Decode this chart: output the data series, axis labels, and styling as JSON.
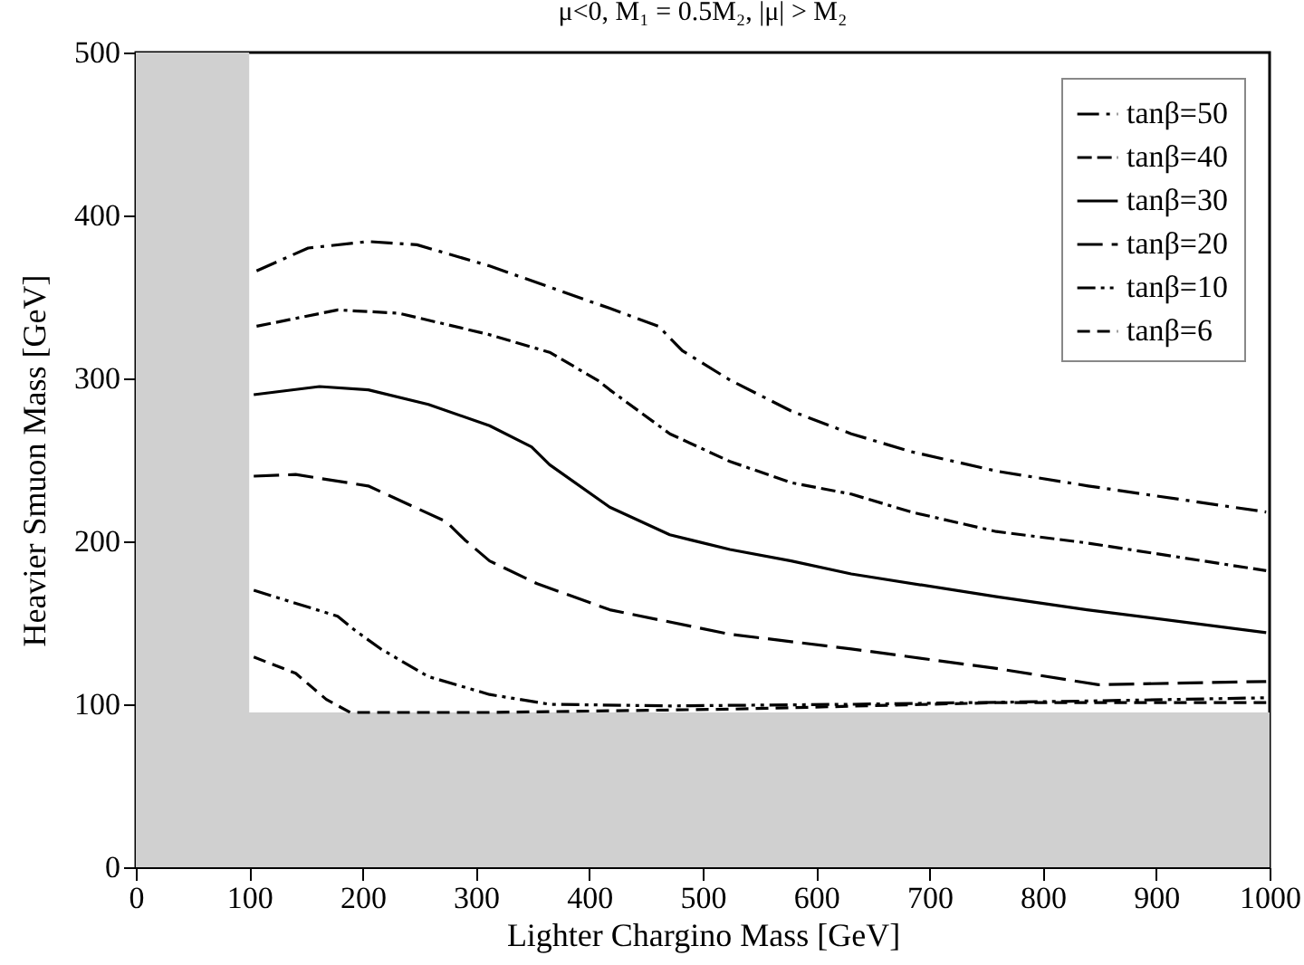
{
  "chart_data": {
    "type": "line",
    "title": "μ<0,   M₁ = 0.5M₂,  |μ| > M₂",
    "xlabel": "Lighter Chargino Mass  [GeV]",
    "ylabel": "Heavier Smuon Mass  [GeV]",
    "xlim": [
      0,
      1000
    ],
    "ylim": [
      0,
      500
    ],
    "xticks": [
      0,
      100,
      200,
      300,
      400,
      500,
      600,
      700,
      800,
      900,
      1000
    ],
    "yticks": [
      0,
      100,
      200,
      300,
      400,
      500
    ],
    "legend": "top right",
    "grid": false,
    "bands": [
      {
        "axis": "x",
        "from": 0,
        "to": 100,
        "color": "#d0d0d0"
      },
      {
        "axis": "y",
        "from": 0,
        "to": 95,
        "color": "#d0d0d0"
      }
    ],
    "series": [
      {
        "name": "tanβ=50",
        "color": "#000000",
        "line_style": "dashdot",
        "x": [
          106.5,
          152,
          205,
          248,
          312,
          365,
          418,
          461,
          482,
          524,
          578,
          631,
          684,
          760,
          840,
          997
        ],
        "values": [
          366,
          380,
          384,
          382,
          369,
          356,
          343,
          332,
          317,
          299,
          280,
          266,
          255,
          243,
          234,
          218
        ]
      },
      {
        "name": "tanβ=40",
        "color": "#000000",
        "line_style": "dashdashdot",
        "x": [
          106.5,
          178,
          232,
          311,
          365,
          407,
          418,
          471,
          524,
          578,
          631,
          684,
          759,
          839,
          997
        ],
        "values": [
          332,
          342,
          340,
          327,
          316,
          299,
          293,
          266,
          249,
          236,
          229,
          218,
          206,
          199,
          182
        ]
      },
      {
        "name": "tanβ=30",
        "color": "#000000",
        "line_style": "solid",
        "x": [
          104,
          162,
          205,
          258,
          312,
          349,
          365,
          418,
          471,
          524,
          578,
          631,
          759,
          839,
          997
        ],
        "values": [
          290,
          295,
          293,
          284,
          271,
          258,
          247,
          221,
          204,
          195,
          188,
          180,
          166,
          158,
          144
        ]
      },
      {
        "name": "tanβ=20",
        "color": "#000000",
        "line_style": "longdash",
        "x": [
          104,
          141,
          205,
          274,
          290,
          312,
          354,
          418,
          524,
          631,
          759,
          849,
          919,
          997
        ],
        "values": [
          240,
          241,
          234,
          212,
          201,
          188,
          174,
          158,
          143,
          134,
          122,
          112,
          113,
          114
        ]
      },
      {
        "name": "tanβ=10",
        "color": "#000000",
        "line_style": "dashdotdot",
        "x": [
          104,
          178,
          194,
          216,
          258,
          312,
          365,
          471,
          631,
          839,
          997
        ],
        "values": [
          170,
          154,
          145,
          134,
          117,
          106,
          100,
          99,
          100,
          102,
          104
        ]
      },
      {
        "name": "tanβ=6",
        "color": "#000000",
        "line_style": "dashed",
        "x": [
          104,
          141,
          168,
          189,
          312,
          524,
          759,
          997
        ],
        "values": [
          129,
          119,
          103,
          95,
          95,
          97,
          101,
          101
        ]
      }
    ]
  }
}
